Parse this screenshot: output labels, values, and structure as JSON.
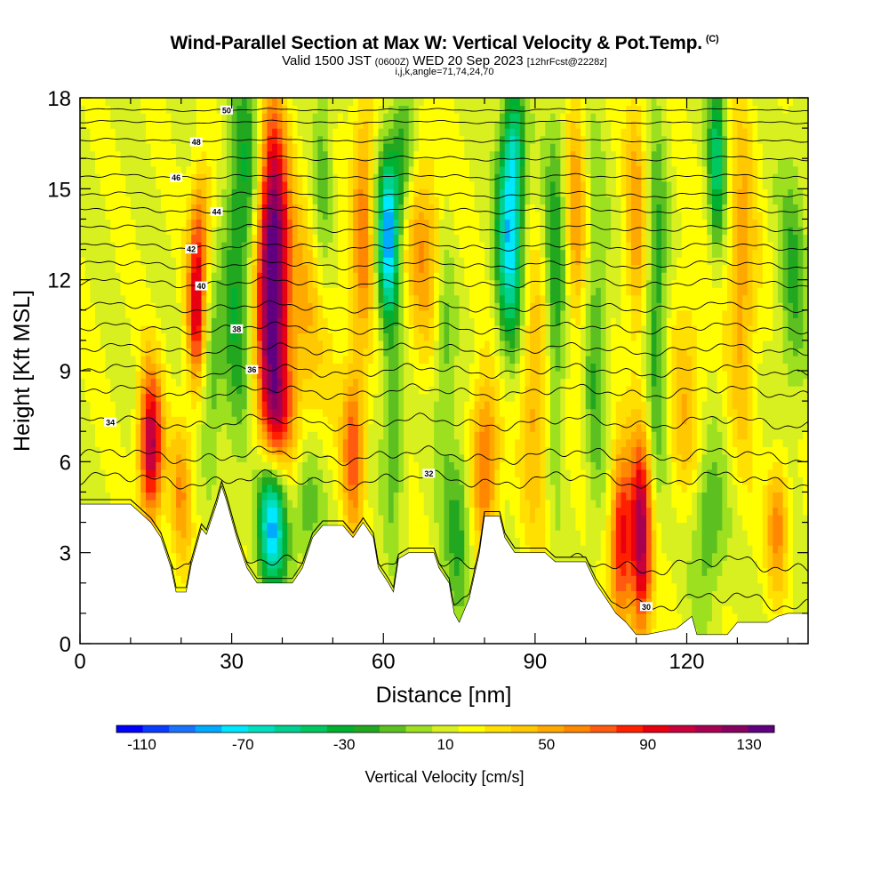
{
  "title_main": "Wind-Parallel Section at Max W: Vertical Velocity & Pot.Temp.",
  "title_mark": "(C)",
  "title_valid": "Valid 1500 JST",
  "title_utc": "(0600Z)",
  "title_date": "WED 20 Sep 2023",
  "title_fcst": "[12hrFcst@2228z]",
  "title_sub": "i,j,k,angle=71,74,24,70",
  "chart_data": {
    "type": "heatmap",
    "xlabel": "Distance [nm]",
    "ylabel": "Height [Kft MSL]",
    "xlim": [
      0,
      144
    ],
    "ylim": [
      0,
      18
    ],
    "x_ticks": [
      0,
      30,
      60,
      90,
      120
    ],
    "y_ticks": [
      0,
      3,
      6,
      9,
      12,
      15,
      18
    ],
    "colorbar": {
      "label": "Vertical Velocity [cm/s]",
      "tick_labels": [
        "-110",
        "-70",
        "-30",
        "10",
        "50",
        "90",
        "130"
      ],
      "tick_values": [
        -110,
        -70,
        -30,
        10,
        50,
        90,
        130
      ],
      "range": [
        -120,
        140
      ],
      "colors": [
        "#0000ff",
        "#0a3cff",
        "#1a73ff",
        "#00aaff",
        "#00e8ff",
        "#00e0c0",
        "#00d090",
        "#00c860",
        "#00b030",
        "#22a820",
        "#5cc020",
        "#9ce020",
        "#d8f020",
        "#ffff00",
        "#ffe000",
        "#ffc800",
        "#ffa800",
        "#ff8800",
        "#ff5a10",
        "#ff2000",
        "#e80010",
        "#c8003c",
        "#a80050",
        "#880060",
        "#600080"
      ]
    },
    "terrain": [
      [
        0,
        4.6
      ],
      [
        10,
        4.6
      ],
      [
        12,
        4.3
      ],
      [
        14,
        4.0
      ],
      [
        16,
        3.5
      ],
      [
        18,
        2.5
      ],
      [
        19,
        1.7
      ],
      [
        21,
        1.7
      ],
      [
        22,
        2.6
      ],
      [
        24,
        3.8
      ],
      [
        25,
        3.6
      ],
      [
        27,
        4.6
      ],
      [
        28,
        5.2
      ],
      [
        29,
        4.7
      ],
      [
        31,
        3.5
      ],
      [
        33,
        2.5
      ],
      [
        35,
        2.0
      ],
      [
        42,
        2.0
      ],
      [
        44,
        2.5
      ],
      [
        46,
        3.5
      ],
      [
        48,
        3.9
      ],
      [
        52,
        3.9
      ],
      [
        54,
        3.5
      ],
      [
        56,
        4.0
      ],
      [
        58,
        3.5
      ],
      [
        59,
        2.5
      ],
      [
        61,
        2.0
      ],
      [
        62,
        1.7
      ],
      [
        63,
        2.8
      ],
      [
        65,
        3.0
      ],
      [
        70,
        3.0
      ],
      [
        71,
        2.5
      ],
      [
        73,
        2.0
      ],
      [
        74,
        1.0
      ],
      [
        75,
        0.7
      ],
      [
        77,
        1.5
      ],
      [
        79,
        3.0
      ],
      [
        80,
        4.2
      ],
      [
        83,
        4.2
      ],
      [
        84,
        3.5
      ],
      [
        86,
        3.0
      ],
      [
        92,
        3.0
      ],
      [
        94,
        2.7
      ],
      [
        100,
        2.7
      ],
      [
        102,
        2.0
      ],
      [
        104,
        1.5
      ],
      [
        106,
        1.0
      ],
      [
        108,
        0.7
      ],
      [
        110,
        0.3
      ],
      [
        112,
        0.3
      ],
      [
        118,
        0.5
      ],
      [
        121,
        0.9
      ],
      [
        122,
        0.3
      ],
      [
        128,
        0.3
      ],
      [
        130,
        0.7
      ],
      [
        136,
        0.7
      ],
      [
        138,
        0.9
      ],
      [
        140,
        1.0
      ],
      [
        144,
        1.0
      ]
    ],
    "velocity_features": [
      {
        "x": 14,
        "z": 6.5,
        "w": 100,
        "sx": 1.6,
        "sz": 1.8
      },
      {
        "x": 20,
        "z": 5.0,
        "w": 40,
        "sx": 1.5,
        "sz": 1.8
      },
      {
        "x": 23,
        "z": 11,
        "w": 80,
        "sx": 1.3,
        "sz": 1.8
      },
      {
        "x": 24,
        "z": 14,
        "w": 40,
        "sx": 1.5,
        "sz": 1.5
      },
      {
        "x": 26,
        "z": 9,
        "w": -30,
        "sx": 1.5,
        "sz": 2.0
      },
      {
        "x": 31,
        "z": 12,
        "w": -40,
        "sx": 2.0,
        "sz": 4.0
      },
      {
        "x": 34,
        "z": 16,
        "w": -30,
        "sx": 2.0,
        "sz": 2.5
      },
      {
        "x": 38,
        "z": 12.5,
        "w": 135,
        "sx": 2.2,
        "sz": 3.5
      },
      {
        "x": 39,
        "z": 7.5,
        "w": 50,
        "sx": 2.5,
        "sz": 1.5
      },
      {
        "x": 45,
        "z": 11,
        "w": 30,
        "sx": 4.0,
        "sz": 3.0
      },
      {
        "x": 38,
        "z": 4.0,
        "w": -100,
        "sx": 2.0,
        "sz": 1.6
      },
      {
        "x": 45,
        "z": 4.5,
        "w": -30,
        "sx": 2.0,
        "sz": 1.5
      },
      {
        "x": 48,
        "z": 15,
        "w": -30,
        "sx": 1.5,
        "sz": 3.0
      },
      {
        "x": 54,
        "z": 6.5,
        "w": 60,
        "sx": 1.5,
        "sz": 2.0
      },
      {
        "x": 56,
        "z": 14,
        "w": 50,
        "sx": 1.5,
        "sz": 3.0
      },
      {
        "x": 61,
        "z": 13.5,
        "w": -100,
        "sx": 1.5,
        "sz": 2.0
      },
      {
        "x": 62,
        "z": 7,
        "w": -30,
        "sx": 1.5,
        "sz": 2.5
      },
      {
        "x": 64,
        "z": 16,
        "w": -40,
        "sx": 1.5,
        "sz": 1.5
      },
      {
        "x": 68,
        "z": 13,
        "w": 40,
        "sx": 3.0,
        "sz": 2.5
      },
      {
        "x": 72,
        "z": 10,
        "w": -30,
        "sx": 1.5,
        "sz": 3.0
      },
      {
        "x": 75,
        "z": 4,
        "w": -35,
        "sx": 2.0,
        "sz": 2.0
      },
      {
        "x": 80,
        "z": 6,
        "w": 60,
        "sx": 2.0,
        "sz": 2.0
      },
      {
        "x": 85,
        "z": 13.5,
        "w": -90,
        "sx": 1.8,
        "sz": 2.5
      },
      {
        "x": 86,
        "z": 16.5,
        "w": -40,
        "sx": 1.5,
        "sz": 1.5
      },
      {
        "x": 90,
        "z": 8,
        "w": 40,
        "sx": 2.0,
        "sz": 3.0
      },
      {
        "x": 94,
        "z": 12,
        "w": -40,
        "sx": 1.5,
        "sz": 4.0
      },
      {
        "x": 98,
        "z": 14,
        "w": 40,
        "sx": 1.5,
        "sz": 3.0
      },
      {
        "x": 102,
        "z": 10,
        "w": -30,
        "sx": 1.5,
        "sz": 4.0
      },
      {
        "x": 107,
        "z": 3.5,
        "w": 80,
        "sx": 1.5,
        "sz": 2.0
      },
      {
        "x": 111,
        "z": 3.5,
        "w": 100,
        "sx": 1.5,
        "sz": 2.5
      },
      {
        "x": 110,
        "z": 14,
        "w": 40,
        "sx": 1.5,
        "sz": 3.0
      },
      {
        "x": 114,
        "z": 11,
        "w": -40,
        "sx": 1.5,
        "sz": 4.0
      },
      {
        "x": 120,
        "z": 8,
        "w": 30,
        "sx": 2.5,
        "sz": 3.0
      },
      {
        "x": 124,
        "z": 4,
        "w": -35,
        "sx": 2.5,
        "sz": 2.0
      },
      {
        "x": 126,
        "z": 16,
        "w": -60,
        "sx": 1.2,
        "sz": 2.0
      },
      {
        "x": 131,
        "z": 12,
        "w": 40,
        "sx": 2.0,
        "sz": 4.0
      },
      {
        "x": 138,
        "z": 4,
        "w": 50,
        "sx": 1.5,
        "sz": 1.5
      },
      {
        "x": 141,
        "z": 12,
        "w": -30,
        "sx": 2.0,
        "sz": 3.0
      }
    ],
    "theta_contours": [
      {
        "value": 30,
        "z": 1.4,
        "label": "30",
        "label_x": 112
      },
      {
        "value": 31,
        "z": 2.6
      },
      {
        "value": 32,
        "z": 5.4,
        "label": "32",
        "label_x": 69
      },
      {
        "value": 33,
        "z": 6.2
      },
      {
        "value": 34,
        "z": 7.3,
        "label": "34",
        "label_x": 6
      },
      {
        "value": 35,
        "z": 8.3
      },
      {
        "value": 36,
        "z": 9.0,
        "label": "36",
        "label_x": 34
      },
      {
        "value": 37,
        "z": 9.7
      },
      {
        "value": 38,
        "z": 10.4,
        "label": "38",
        "label_x": 31
      },
      {
        "value": 39,
        "z": 11.1
      },
      {
        "value": 40,
        "z": 11.9,
        "label": "40",
        "label_x": 24
      },
      {
        "value": 41,
        "z": 12.5
      },
      {
        "value": 42,
        "z": 13.1,
        "label": "42",
        "label_x": 22
      },
      {
        "value": 43,
        "z": 13.7
      },
      {
        "value": 44,
        "z": 14.3,
        "label": "44",
        "label_x": 27
      },
      {
        "value": 45,
        "z": 14.8
      },
      {
        "value": 46,
        "z": 15.4,
        "label": "46",
        "label_x": 19
      },
      {
        "value": 47,
        "z": 16.0
      },
      {
        "value": 48,
        "z": 16.6,
        "label": "48",
        "label_x": 23
      },
      {
        "value": 49,
        "z": 17.2
      },
      {
        "value": 50,
        "z": 17.6,
        "label": "50",
        "label_x": 29
      }
    ]
  }
}
